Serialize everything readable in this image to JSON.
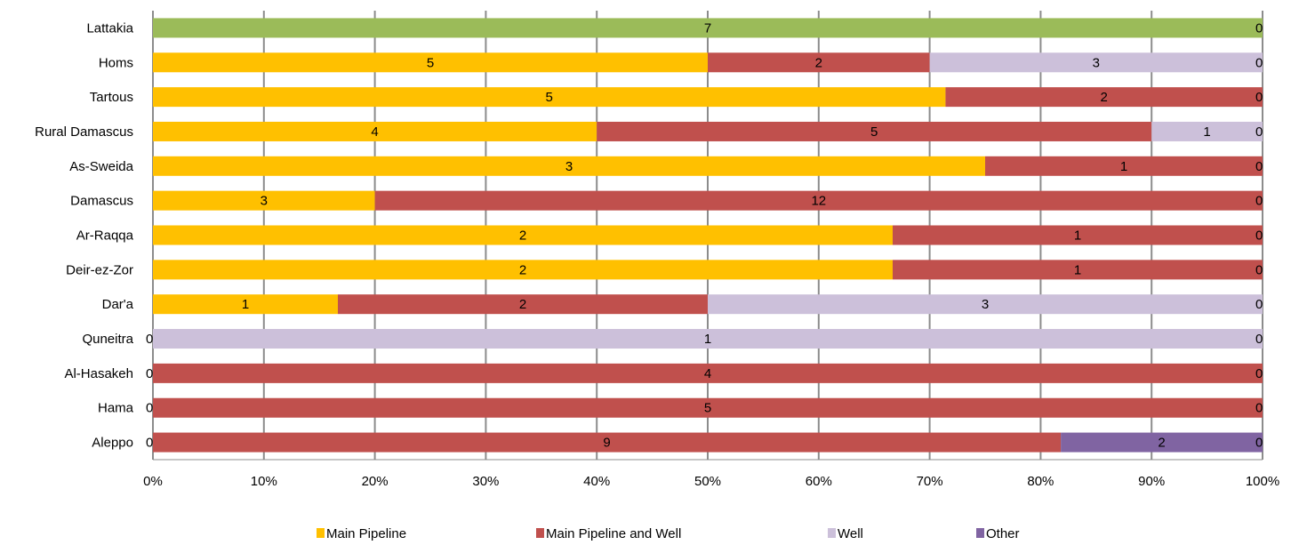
{
  "chart_data": {
    "type": "bar",
    "orientation": "horizontal",
    "stacked": "percent",
    "title": "",
    "xlabel": "",
    "ylabel": "",
    "xlim": [
      0,
      100
    ],
    "grid": true,
    "legend": "bottom",
    "tick_labels": [
      "0%",
      "10%",
      "20%",
      "30%",
      "40%",
      "50%",
      "60%",
      "70%",
      "80%",
      "90%",
      "100%"
    ],
    "categories": [
      "Lattakia",
      "Homs",
      "Tartous",
      "Rural Damascus",
      "As-Sweida",
      "Damascus",
      "Ar-Raqqa",
      "Deir-ez-Zor",
      "Dar'a",
      "Quneitra",
      "Al-Hasakeh",
      "Hama",
      "Aleppo"
    ],
    "series": [
      {
        "name": "Main Pipeline",
        "color": "#FFC000",
        "values": [
          7,
          5,
          5,
          4,
          3,
          3,
          2,
          2,
          1,
          0,
          0,
          0,
          0
        ]
      },
      {
        "name": "Main Pipeline and Well",
        "color": "#C0504D",
        "values": [
          0,
          2,
          2,
          5,
          1,
          12,
          1,
          1,
          2,
          0,
          4,
          5,
          9
        ]
      },
      {
        "name": "Well",
        "color": "#CCC0DA",
        "values": [
          0,
          3,
          0,
          1,
          0,
          0,
          0,
          0,
          3,
          1,
          0,
          0,
          0
        ]
      },
      {
        "name": "Other",
        "color": "#8064A2",
        "values": [
          0,
          0,
          0,
          0,
          0,
          0,
          0,
          0,
          0,
          0,
          0,
          0,
          2
        ]
      }
    ],
    "row_colors": {
      "Lattakia": "#9BBB59"
    }
  }
}
